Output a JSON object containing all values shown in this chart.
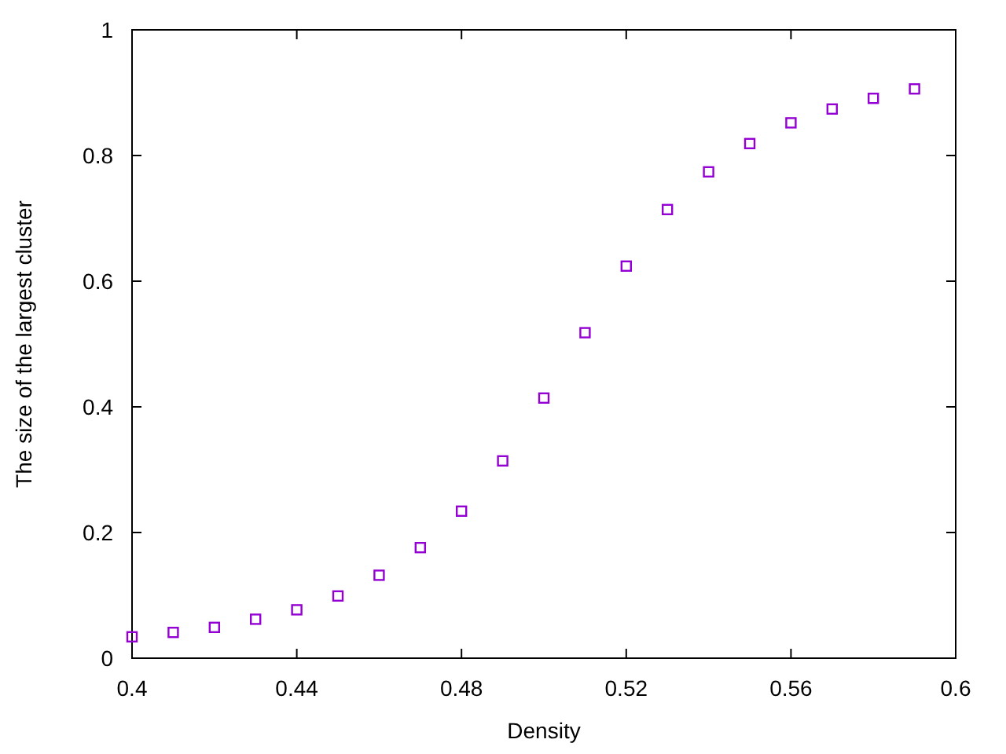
{
  "chart_data": {
    "type": "scatter",
    "xlabel": "Density",
    "ylabel": "The size of the largest cluster",
    "x": [
      0.4,
      0.41,
      0.42,
      0.43,
      0.44,
      0.45,
      0.46,
      0.47,
      0.48,
      0.49,
      0.5,
      0.51,
      0.52,
      0.53,
      0.54,
      0.55,
      0.56,
      0.57,
      0.58,
      0.59
    ],
    "series": [
      {
        "color": "#9400d3",
        "values": [
          0.034,
          0.041,
          0.049,
          0.062,
          0.077,
          0.099,
          0.132,
          0.176,
          0.234,
          0.314,
          0.414,
          0.518,
          0.624,
          0.714,
          0.774,
          0.819,
          0.852,
          0.874,
          0.891,
          0.906
        ]
      }
    ],
    "xlim": [
      0.4,
      0.6
    ],
    "xticks": [
      0.4,
      0.44,
      0.48,
      0.52,
      0.56,
      0.6
    ],
    "ylim": [
      0,
      1
    ],
    "yticks": [
      0,
      0.2,
      0.4,
      0.6,
      0.8,
      1
    ],
    "marker": "square",
    "grid": false
  }
}
